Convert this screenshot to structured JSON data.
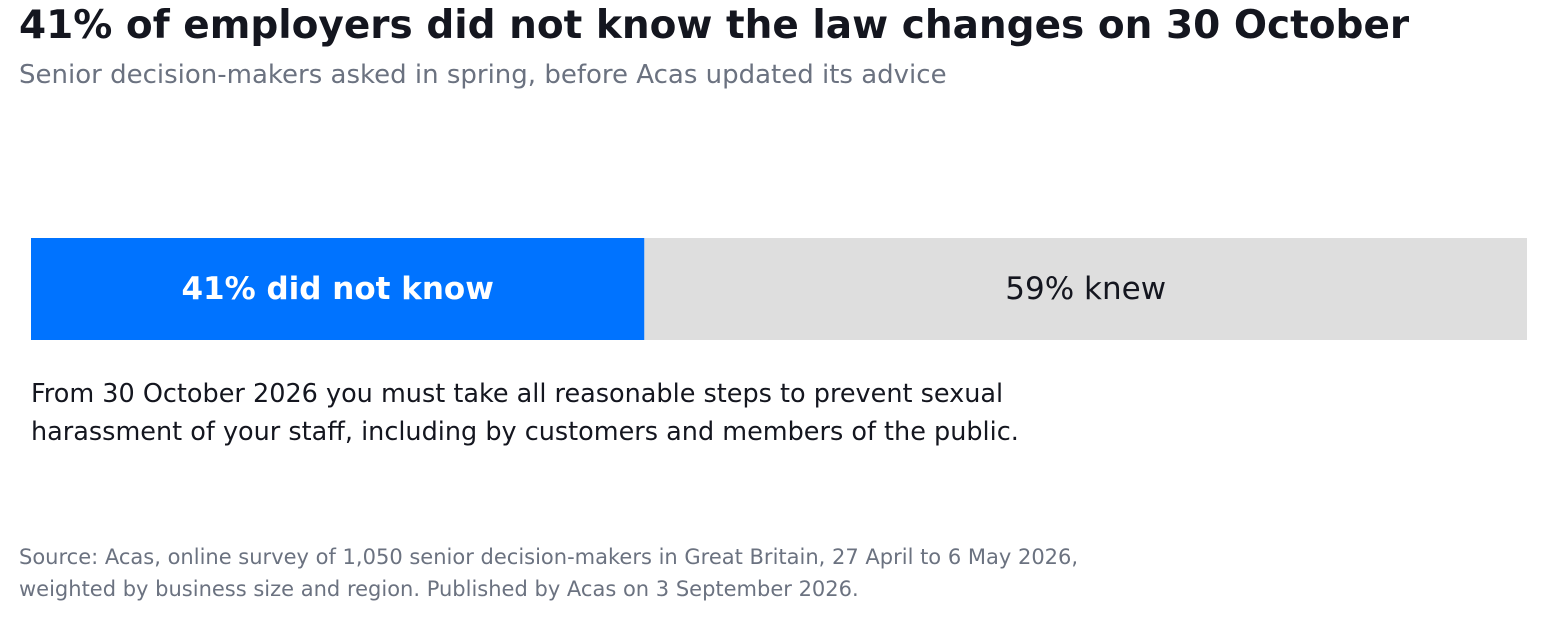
{
  "chart_data": {
    "type": "bar",
    "orientation": "horizontal",
    "stacked": true,
    "title": "41% of employers did not know the law changes on 30 October",
    "subtitle": "Senior decision-makers asked in spring, before Acas updated its advice",
    "categories": [
      null
    ],
    "xlim": [
      0,
      100
    ],
    "series": [
      {
        "color": "#0073ff",
        "values": [
          41
        ],
        "value_labels": [
          "41% did not know"
        ]
      },
      {
        "color": "#dedede",
        "values": [
          59
        ],
        "value_labels": [
          "59% knew"
        ]
      }
    ],
    "annotation": [
      "From 30 October 2026 you must take all reasonable steps to prevent sexual",
      "harassment of your staff, including by customers and members of the public."
    ],
    "source": [
      "Source: Acas, online survey of 1,050 senior decision-makers in Great Britain, 27 April to 6 May 2026,",
      "weighted by business size and region. Published by Acas on 3 September 2026."
    ]
  }
}
